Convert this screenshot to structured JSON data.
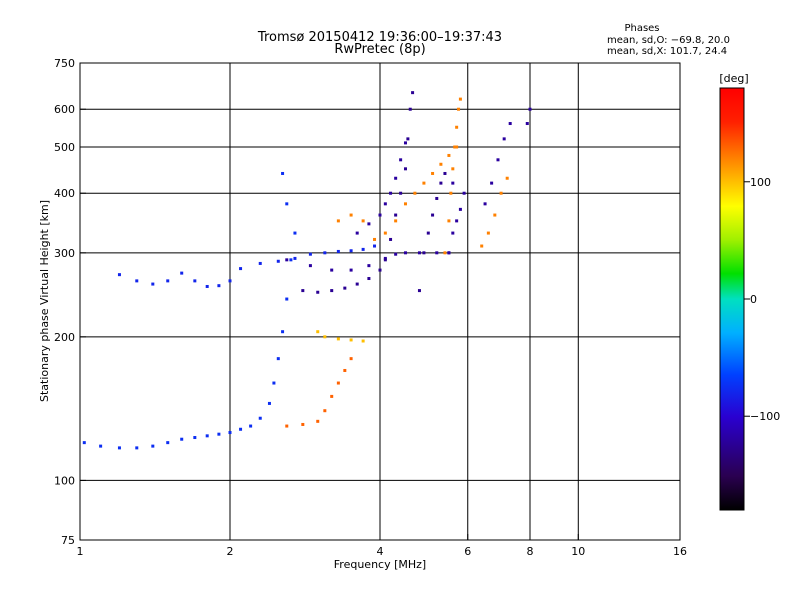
{
  "chart_data": {
    "type": "scatter",
    "title": "Tromsø 20150412 19:36:00–19:37:43",
    "subtitle": "RwPretec (8p)",
    "xlabel": "Frequency [MHz]",
    "ylabel": "Stationary phase Virtual Height [km]",
    "x_scale": "log",
    "y_scale": "log",
    "xlim": [
      1,
      16
    ],
    "ylim": [
      75,
      750
    ],
    "x_ticks": [
      1,
      2,
      4,
      6,
      8,
      10,
      16
    ],
    "x_tick_labels": [
      "1",
      "2",
      "4",
      "6",
      "8",
      "10",
      "16"
    ],
    "y_ticks": [
      75,
      100,
      200,
      300,
      400,
      500,
      600,
      750
    ],
    "y_tick_labels": [
      "75",
      "100",
      "200",
      "300",
      "400",
      "500",
      "600",
      "750"
    ],
    "grid": true,
    "x_gridlines": [
      2,
      4,
      6,
      8,
      10
    ],
    "y_gridlines": [
      100,
      200,
      300,
      400,
      500,
      600
    ],
    "stats_title": "Phases",
    "stats_lines": [
      "mean, sd,O: −69.8, 20.0",
      "mean, sd,X: 101.7, 24.4"
    ],
    "colorbar": {
      "label": "[deg]",
      "range": [
        -180,
        180
      ],
      "ticks": [
        100,
        0,
        -100
      ],
      "tick_labels": [
        "100",
        "0",
        "−100"
      ],
      "colormap": "rainbow"
    },
    "clusters": [
      {
        "phase": -75,
        "points": [
          [
            1.02,
            120
          ],
          [
            1.1,
            118
          ],
          [
            1.2,
            117
          ],
          [
            1.3,
            117
          ],
          [
            1.4,
            118
          ],
          [
            1.5,
            120
          ],
          [
            1.6,
            122
          ],
          [
            1.7,
            123
          ],
          [
            1.8,
            124
          ],
          [
            1.9,
            125
          ],
          [
            2.0,
            126
          ],
          [
            2.1,
            128
          ],
          [
            2.2,
            130
          ],
          [
            2.3,
            135
          ],
          [
            2.4,
            145
          ],
          [
            2.45,
            160
          ],
          [
            2.5,
            180
          ],
          [
            2.55,
            205
          ],
          [
            2.6,
            240
          ],
          [
            2.65,
            290
          ],
          [
            2.7,
            330
          ],
          [
            2.6,
            380
          ],
          [
            2.55,
            440
          ]
        ]
      },
      {
        "phase": -80,
        "points": [
          [
            1.2,
            270
          ],
          [
            1.3,
            262
          ],
          [
            1.4,
            258
          ],
          [
            1.5,
            262
          ],
          [
            1.6,
            272
          ],
          [
            1.7,
            262
          ],
          [
            1.8,
            255
          ],
          [
            1.9,
            256
          ],
          [
            2.0,
            262
          ],
          [
            2.1,
            278
          ],
          [
            2.3,
            285
          ],
          [
            2.5,
            288
          ],
          [
            2.7,
            292
          ],
          [
            2.9,
            298
          ],
          [
            3.1,
            300
          ],
          [
            3.3,
            302
          ],
          [
            3.5,
            303
          ],
          [
            3.7,
            305
          ],
          [
            3.9,
            310
          ]
        ]
      },
      {
        "phase": -120,
        "points": [
          [
            2.6,
            290
          ],
          [
            2.9,
            282
          ],
          [
            3.2,
            276
          ],
          [
            3.5,
            276
          ],
          [
            3.8,
            282
          ],
          [
            4.1,
            292
          ],
          [
            4.3,
            298
          ],
          [
            4.5,
            300
          ],
          [
            4.8,
            300
          ],
          [
            5.2,
            300
          ],
          [
            5.5,
            300
          ]
        ]
      },
      {
        "phase": -125,
        "points": [
          [
            2.8,
            250
          ],
          [
            3.0,
            248
          ],
          [
            3.2,
            250
          ],
          [
            3.4,
            253
          ],
          [
            3.6,
            258
          ],
          [
            3.8,
            265
          ],
          [
            4.0,
            276
          ],
          [
            4.1,
            290
          ],
          [
            4.2,
            320
          ],
          [
            4.3,
            360
          ],
          [
            4.4,
            400
          ],
          [
            4.5,
            450
          ],
          [
            4.55,
            520
          ],
          [
            4.6,
            600
          ],
          [
            4.65,
            650
          ]
        ]
      },
      {
        "phase": -120,
        "points": [
          [
            3.6,
            330
          ],
          [
            3.8,
            345
          ],
          [
            4.0,
            360
          ],
          [
            4.1,
            380
          ],
          [
            4.2,
            400
          ],
          [
            4.3,
            430
          ],
          [
            4.4,
            470
          ],
          [
            4.5,
            510
          ]
        ]
      },
      {
        "phase": -125,
        "points": [
          [
            4.8,
            250
          ],
          [
            4.9,
            300
          ],
          [
            5.0,
            330
          ],
          [
            5.1,
            360
          ],
          [
            5.2,
            390
          ],
          [
            5.3,
            420
          ],
          [
            5.4,
            440
          ]
        ]
      },
      {
        "phase": -120,
        "points": [
          [
            5.5,
            300
          ],
          [
            5.6,
            330
          ],
          [
            5.7,
            350
          ],
          [
            5.8,
            370
          ],
          [
            5.9,
            400
          ],
          [
            5.6,
            420
          ]
        ]
      },
      {
        "phase": 120,
        "points": [
          [
            3.3,
            350
          ],
          [
            3.5,
            360
          ],
          [
            3.7,
            350
          ],
          [
            3.9,
            320
          ],
          [
            4.1,
            330
          ],
          [
            4.3,
            350
          ],
          [
            4.5,
            380
          ],
          [
            4.7,
            400
          ],
          [
            4.9,
            420
          ],
          [
            5.1,
            440
          ],
          [
            5.3,
            460
          ],
          [
            5.5,
            480
          ],
          [
            5.7,
            500
          ]
        ]
      },
      {
        "phase": 120,
        "points": [
          [
            5.4,
            300
          ],
          [
            5.5,
            350
          ],
          [
            5.55,
            400
          ],
          [
            5.6,
            450
          ],
          [
            5.65,
            500
          ],
          [
            5.7,
            550
          ],
          [
            5.75,
            600
          ],
          [
            5.8,
            630
          ]
        ]
      },
      {
        "phase": 130,
        "points": [
          [
            2.6,
            130
          ],
          [
            2.8,
            131
          ],
          [
            3.0,
            133
          ],
          [
            3.1,
            140
          ],
          [
            3.2,
            150
          ],
          [
            3.3,
            160
          ],
          [
            3.4,
            170
          ],
          [
            3.5,
            180
          ]
        ]
      },
      {
        "phase": 100,
        "points": [
          [
            3.0,
            205
          ],
          [
            3.1,
            200
          ],
          [
            3.3,
            198
          ],
          [
            3.5,
            197
          ],
          [
            3.7,
            196
          ]
        ]
      },
      {
        "phase": 120,
        "points": [
          [
            6.4,
            310
          ],
          [
            6.6,
            330
          ],
          [
            6.8,
            360
          ],
          [
            7.0,
            400
          ],
          [
            7.2,
            430
          ]
        ]
      },
      {
        "phase": -120,
        "points": [
          [
            6.5,
            380
          ],
          [
            6.7,
            420
          ],
          [
            6.9,
            470
          ],
          [
            7.1,
            520
          ],
          [
            7.3,
            560
          ]
        ]
      },
      {
        "phase": -120,
        "points": [
          [
            8.0,
            600
          ],
          [
            7.9,
            560
          ]
        ]
      }
    ]
  }
}
